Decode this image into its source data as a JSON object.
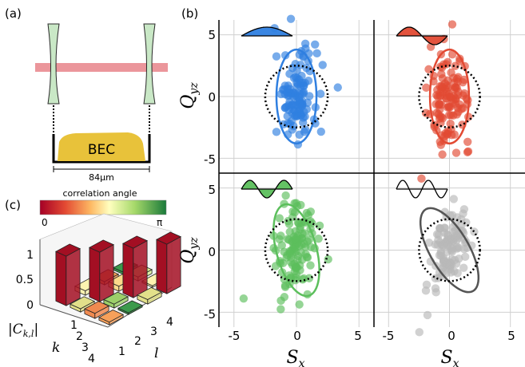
{
  "panel_labels": {
    "a": "(a)",
    "b": "(b)",
    "c": "(c)"
  },
  "panel_a": {
    "bec_label": "BEC",
    "scale_label": "84µm",
    "colors": {
      "beam": "#e8848a",
      "bec": "#e8c23a",
      "lens": "#c9e8c6"
    }
  },
  "panel_b": {
    "x_label": "S_x",
    "y_label": "Q_yz",
    "x_ticks": [
      "-5",
      "0",
      "5"
    ],
    "y_ticks": [
      "5",
      "0",
      "-5"
    ],
    "subplots": [
      {
        "name": "blue",
        "color": "#2f7fe0",
        "mode": "half-lobe",
        "ellipse_tilt_deg": 0
      },
      {
        "name": "red",
        "color": "#e24a33",
        "mode": "one-period",
        "ellipse_tilt_deg": 0
      },
      {
        "name": "green",
        "color": "#5cbf5c",
        "mode": "one-and-half",
        "ellipse_tilt_deg": -15
      },
      {
        "name": "gray",
        "color": "#b8b8b8",
        "mode": "two-period",
        "ellipse_tilt_deg": -30
      }
    ]
  },
  "panel_c": {
    "colorbar_title": "correlation angle",
    "colorbar_min": "0",
    "colorbar_max": "π",
    "z_label": "|C_k,l|",
    "z_ticks": [
      "1",
      "0.5",
      "0"
    ],
    "k_label": "k",
    "l_label": "l",
    "k_ticks": [
      "1",
      "2",
      "3",
      "4"
    ],
    "l_ticks": [
      "1",
      "2",
      "3",
      "4"
    ]
  },
  "chart_data": {
    "type": "bar",
    "title": "",
    "zlabel": "|C_k,l|",
    "zlim": [
      0,
      1
    ],
    "k": [
      1,
      2,
      3,
      4
    ],
    "l": [
      1,
      2,
      3,
      4
    ],
    "diagonal_values": [
      1,
      1,
      1,
      1
    ],
    "offdiagonal_approx": 0.08
  }
}
